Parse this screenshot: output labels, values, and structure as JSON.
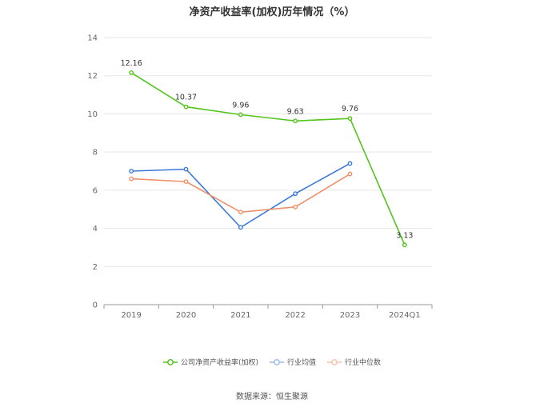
{
  "chart_data": {
    "type": "line",
    "title": "净资产收益率(加权)历年情况（%）",
    "categories": [
      "2019",
      "2020",
      "2021",
      "2022",
      "2023",
      "2024Q1"
    ],
    "ylim": [
      0,
      14
    ],
    "yticks": [
      0,
      2,
      4,
      6,
      8,
      10,
      12,
      14
    ],
    "grid": true,
    "legend_position": "bottom",
    "series": [
      {
        "name": "公司净资产收益率(加权)",
        "color": "#52c41a",
        "values": [
          12.16,
          10.37,
          9.96,
          9.63,
          9.76,
          3.13
        ],
        "labels": [
          "12.16",
          "10.37",
          "9.96",
          "9.63",
          "9.76",
          "3.13"
        ]
      },
      {
        "name": "行业均值",
        "color": "#3a78d8",
        "values": [
          7.0,
          7.1,
          4.05,
          5.82,
          7.4,
          null
        ]
      },
      {
        "name": "行业中位数",
        "color": "#f0906a",
        "values": [
          6.6,
          6.45,
          4.85,
          5.12,
          6.85,
          null
        ]
      }
    ]
  },
  "source": "数据来源：恒生聚源"
}
